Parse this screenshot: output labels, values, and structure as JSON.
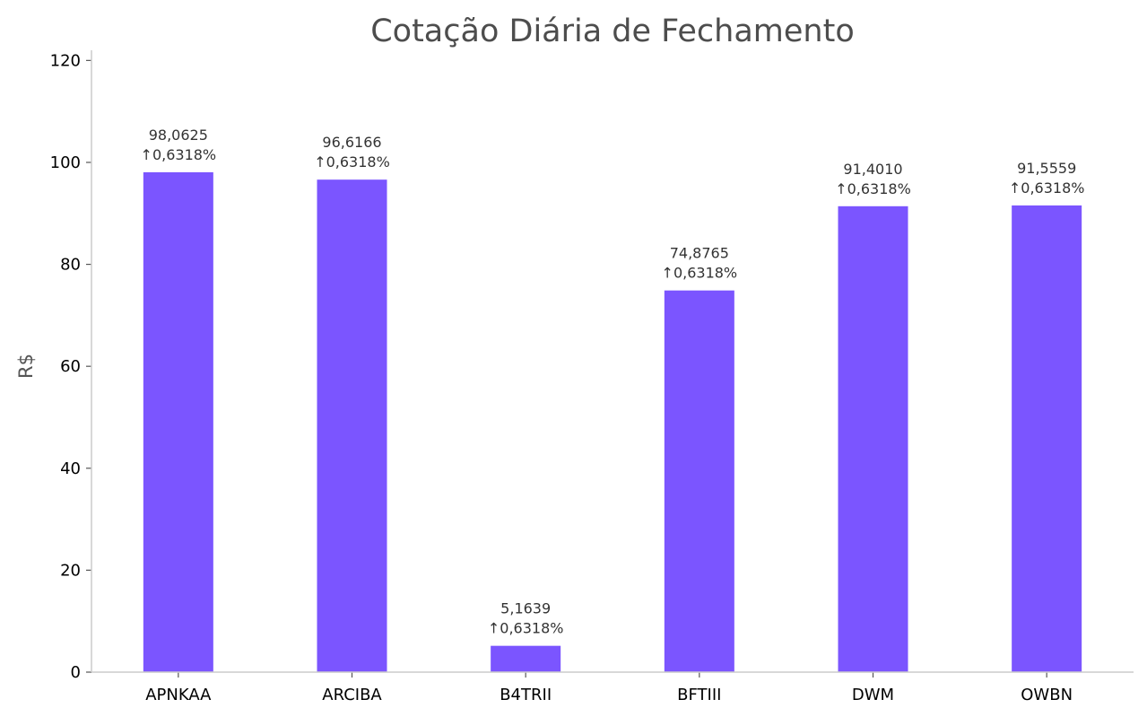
{
  "chart_data": {
    "type": "bar",
    "title": "Cotação Diária de Fechamento",
    "xlabel": "",
    "ylabel": "R$",
    "ylim": [
      0,
      122
    ],
    "yticks": [
      0,
      20,
      40,
      60,
      80,
      100,
      120
    ],
    "categories": [
      "APNKAA",
      "ARCIBA",
      "B4TRII",
      "BFTIII",
      "DWM",
      "OWBN"
    ],
    "values": [
      98.0625,
      96.6166,
      5.1639,
      74.8765,
      91.401,
      91.5559
    ],
    "value_labels": [
      "98,0625",
      "96,6166",
      "5,1639",
      "74,8765",
      "91,4010",
      "91,5559"
    ],
    "change_labels": [
      "↑0,6318%",
      "↑0,6318%",
      "↑0,6318%",
      "↑0,6318%",
      "↑0,6318%",
      "↑0,6318%"
    ],
    "grid": false,
    "legend": "none",
    "colors": {
      "bar": "#7b55ff",
      "axis": "#cccccc",
      "title": "#4d4d4d"
    }
  }
}
